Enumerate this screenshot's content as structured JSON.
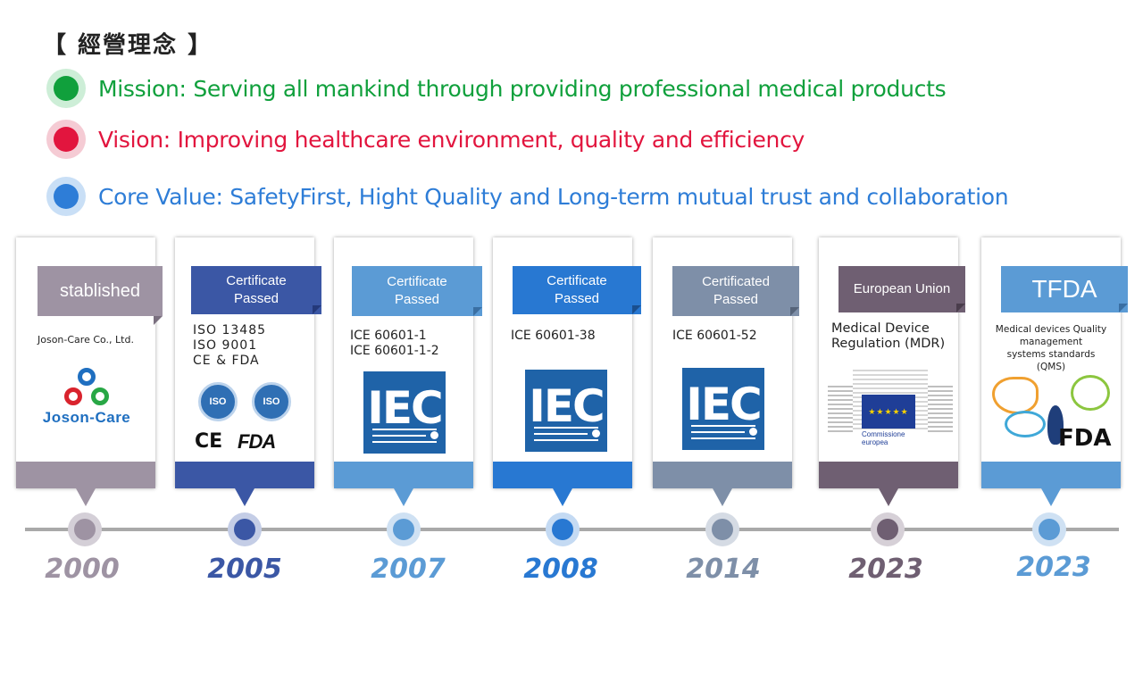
{
  "heading": "【 經營理念 】",
  "principles": [
    {
      "text": "Mission: Serving all mankind through providing professional medical products",
      "color": "#10a03c",
      "ring": "#cdeed7"
    },
    {
      "text": "Vision: Improving healthcare environment, quality and efficiency",
      "color": "#e2153e",
      "ring": "#f5cbd4"
    },
    {
      "text": "Core Value: SafetyFirst, Hight Quality and Long-term mutual trust and collaboration",
      "color": "#2e7dd7",
      "ring": "#c9dff6"
    }
  ],
  "milestones": [
    {
      "year": "2000",
      "badge": "stablished",
      "text": "Joson-Care Co., Ltd.",
      "logo": "joson-care-logo",
      "logo_text": "Joson-Care",
      "color": "#9e93a3",
      "year_color": "#9e93a3"
    },
    {
      "year": "2005",
      "badge": "Certificate\nPassed",
      "text": "ISO  13485\nISO  9001\nCE & FDA",
      "logo": "iso-ce-fda-logos",
      "iso_label": "ISO",
      "ce_label": "CE",
      "fda_label": "FDA",
      "color": "#3b57a5",
      "year_color": "#3b57a5"
    },
    {
      "year": "2007",
      "badge": "Certificate\nPassed",
      "text": "ICE 60601-1\nICE 60601-1-2",
      "logo": "iec-logo",
      "logo_text": "IEC",
      "color": "#5b9bd5",
      "year_color": "#5b9bd5"
    },
    {
      "year": "2008",
      "badge": "Certificate\nPassed",
      "text": "ICE 60601-38",
      "logo": "iec-logo",
      "logo_text": "IEC",
      "color": "#2878d2",
      "year_color": "#2878d2"
    },
    {
      "year": "2014",
      "badge": "Certificated\nPassed",
      "text": "ICE 60601-52",
      "logo": "iec-logo",
      "logo_text": "IEC",
      "color": "#7e8fa8",
      "year_color": "#7e8fa8"
    },
    {
      "year": "2023",
      "badge": "European Union",
      "text": "Medical Device\nRegulation (MDR)",
      "logo": "eu-commission-logo",
      "logo_text": "Commissione\neuropea",
      "color": "#6f5f72",
      "year_color": "#6f5f72"
    },
    {
      "year": "2023",
      "badge": "TFDA",
      "text": "Medical devices Quality\nmanagement\nsystems standards\n(QMS)",
      "logo": "tfda-logo",
      "logo_text": "FDA",
      "color": "#5b9bd5",
      "year_color": "#5b9bd5"
    }
  ]
}
